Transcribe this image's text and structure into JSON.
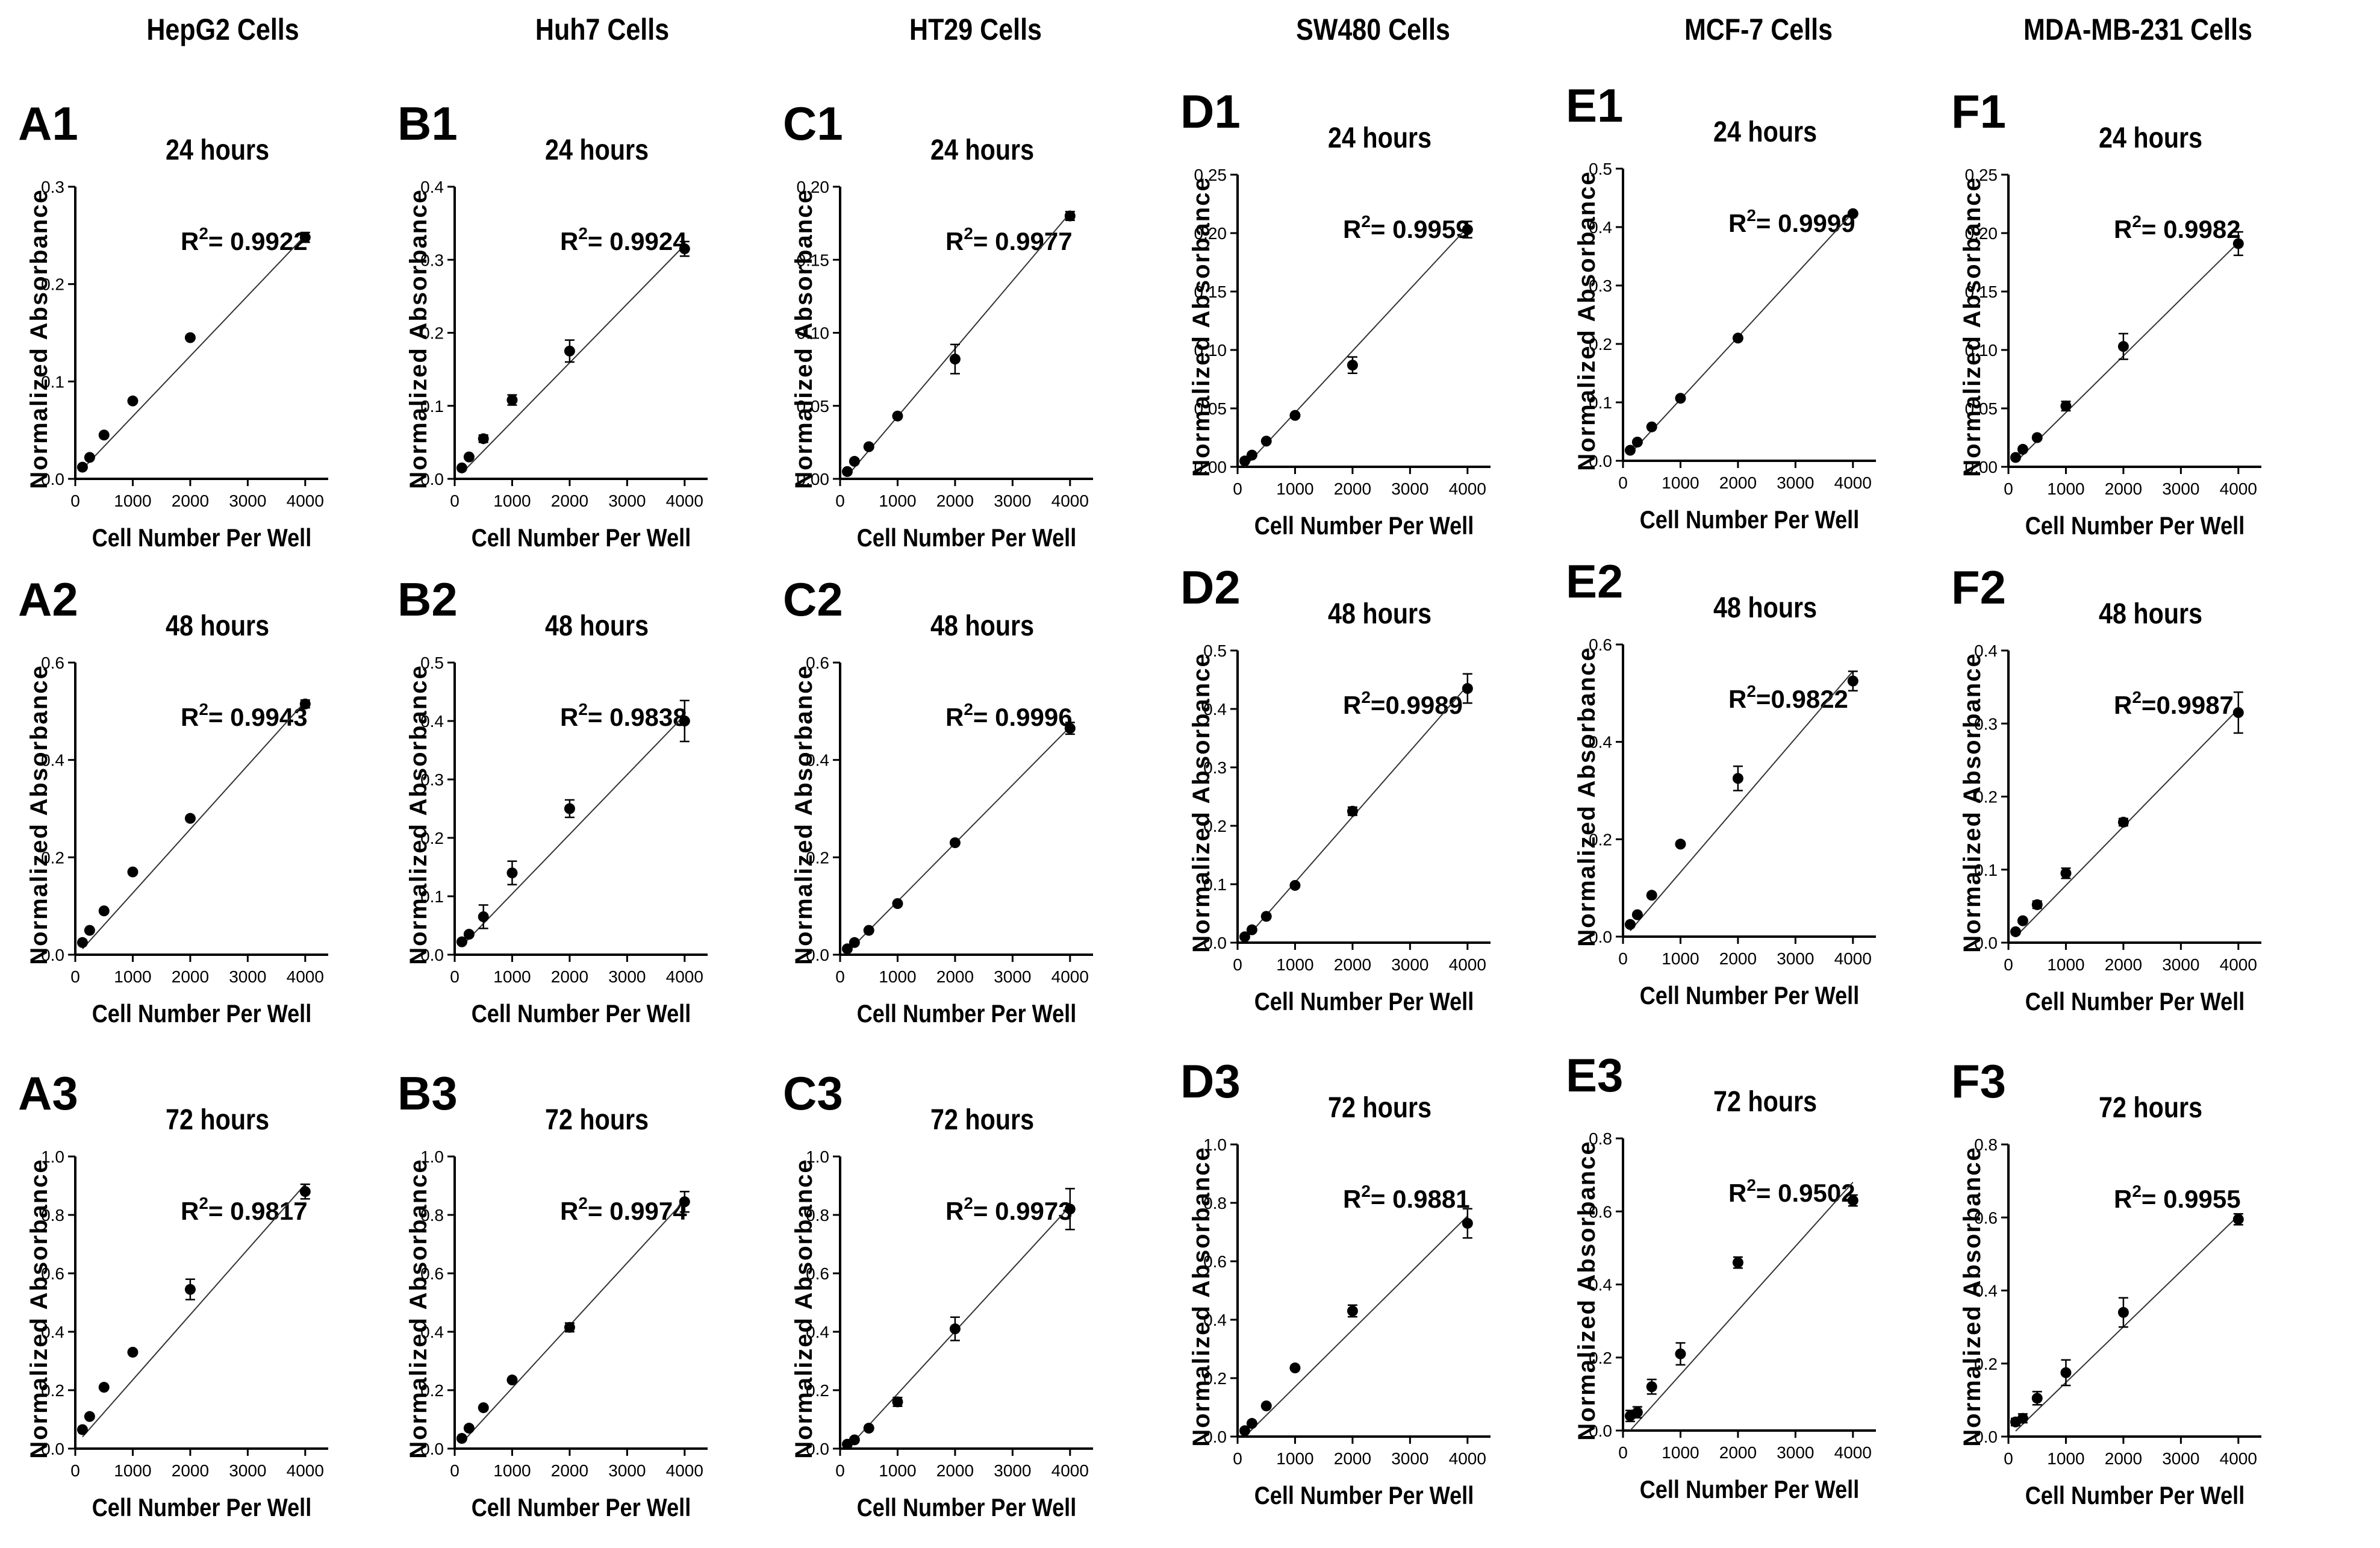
{
  "column_titles": [
    "HepG2 Cells",
    "Huh7 Cells",
    "HT29 Cells",
    "SW480 Cells",
    "MCF-7 Cells",
    "MDA-MB-231 Cells"
  ],
  "chart_data": [
    {
      "id": "A1",
      "type": "scatter",
      "time": "24 hours",
      "r2_label": "= 0.9922",
      "xlabel": "Cell Number Per Well",
      "ylabel": "Normalized Absorbance",
      "xlim": [
        0,
        4400
      ],
      "xticks": [
        "0",
        "1000",
        "2000",
        "3000",
        "4000"
      ],
      "ylim": [
        0,
        0.3
      ],
      "yticks": [
        "0.0",
        "0.1",
        "0.2",
        "0.3"
      ],
      "x": [
        125,
        250,
        500,
        1000,
        2000,
        4000
      ],
      "y": [
        0.012,
        0.022,
        0.045,
        0.08,
        0.145,
        0.248
      ],
      "err": [
        0.003,
        0.003,
        0.003,
        0.003,
        0.003,
        0.005
      ],
      "fit": [
        [
          125,
          0.01
        ],
        [
          4000,
          0.25
        ]
      ]
    },
    {
      "id": "A2",
      "type": "scatter",
      "time": "48 hours",
      "r2_label": "= 0.9943",
      "xlabel": "Cell Number Per Well",
      "ylabel": "Normalized Absorbance",
      "xlim": [
        0,
        4400
      ],
      "xticks": [
        "0",
        "1000",
        "2000",
        "3000",
        "4000"
      ],
      "ylim": [
        0,
        0.6
      ],
      "yticks": [
        "0.0",
        "0.2",
        "0.4",
        "0.6"
      ],
      "x": [
        125,
        250,
        500,
        1000,
        2000,
        4000
      ],
      "y": [
        0.025,
        0.05,
        0.09,
        0.17,
        0.28,
        0.515
      ],
      "err": [
        0.004,
        0.004,
        0.005,
        0.005,
        0.006,
        0.008
      ],
      "fit": [
        [
          125,
          0.012
        ],
        [
          4000,
          0.52
        ]
      ]
    },
    {
      "id": "A3",
      "type": "scatter",
      "time": "72 hours",
      "r2_label": "= 0.9817",
      "xlabel": "Cell Number Per Well",
      "ylabel": "Normalized Absorbance",
      "xlim": [
        0,
        4400
      ],
      "xticks": [
        "0",
        "1000",
        "2000",
        "3000",
        "4000"
      ],
      "ylim": [
        0,
        1.0
      ],
      "yticks": [
        "0.0",
        "0.2",
        "0.4",
        "0.6",
        "0.8",
        "1.0"
      ],
      "x": [
        125,
        250,
        500,
        1000,
        2000,
        4000
      ],
      "y": [
        0.065,
        0.11,
        0.21,
        0.33,
        0.545,
        0.88
      ],
      "err": [
        0.01,
        0.012,
        0.01,
        0.012,
        0.035,
        0.025
      ],
      "fit": [
        [
          125,
          0.04
        ],
        [
          4000,
          0.905
        ]
      ]
    },
    {
      "id": "B1",
      "type": "scatter",
      "time": "24 hours",
      "r2_label": "= 0.9924",
      "xlabel": "Cell Number Per Well",
      "ylabel": "Normalized Absorbance",
      "xlim": [
        0,
        4400
      ],
      "xticks": [
        "0",
        "1000",
        "2000",
        "3000",
        "4000"
      ],
      "ylim": [
        0,
        0.4
      ],
      "yticks": [
        "0.0",
        "0.1",
        "0.2",
        "0.3",
        "0.4"
      ],
      "x": [
        125,
        250,
        500,
        1000,
        2000,
        4000
      ],
      "y": [
        0.015,
        0.03,
        0.055,
        0.108,
        0.175,
        0.315
      ],
      "err": [
        0.004,
        0.004,
        0.005,
        0.007,
        0.015,
        0.01
      ],
      "fit": [
        [
          125,
          0.008
        ],
        [
          4000,
          0.32
        ]
      ]
    },
    {
      "id": "B2",
      "type": "scatter",
      "time": "48 hours",
      "r2_label": "= 0.9838",
      "xlabel": "Cell Number Per Well",
      "ylabel": "Normalized Absorbance",
      "xlim": [
        0,
        4400
      ],
      "xticks": [
        "0",
        "1000",
        "2000",
        "3000",
        "4000"
      ],
      "ylim": [
        0,
        0.5
      ],
      "yticks": [
        "0.0",
        "0.1",
        "0.2",
        "0.3",
        "0.4",
        "0.5"
      ],
      "x": [
        125,
        250,
        500,
        1000,
        2000,
        4000
      ],
      "y": [
        0.022,
        0.035,
        0.065,
        0.14,
        0.25,
        0.4
      ],
      "err": [
        0.005,
        0.006,
        0.02,
        0.02,
        0.015,
        0.035
      ],
      "fit": [
        [
          125,
          0.015
        ],
        [
          4000,
          0.41
        ]
      ]
    },
    {
      "id": "B3",
      "type": "scatter",
      "time": "72 hours",
      "r2_label": "= 0.9974",
      "xlabel": "Cell Number Per Well",
      "ylabel": "Normalized Absorbance",
      "xlim": [
        0,
        4400
      ],
      "xticks": [
        "0",
        "1000",
        "2000",
        "3000",
        "4000"
      ],
      "ylim": [
        0,
        1.0
      ],
      "yticks": [
        "0.0",
        "0.2",
        "0.4",
        "0.6",
        "0.8",
        "1.0"
      ],
      "x": [
        125,
        250,
        500,
        1000,
        2000,
        4000
      ],
      "y": [
        0.035,
        0.07,
        0.14,
        0.235,
        0.415,
        0.845
      ],
      "err": [
        0.01,
        0.01,
        0.01,
        0.012,
        0.015,
        0.035
      ],
      "fit": [
        [
          125,
          0.02
        ],
        [
          4000,
          0.85
        ]
      ]
    },
    {
      "id": "C1",
      "type": "scatter",
      "time": "24 hours",
      "r2_label": "= 0.9977",
      "xlabel": "Cell Number Per Well",
      "ylabel": "Normalized Absorbance",
      "xlim": [
        0,
        4400
      ],
      "xticks": [
        "0",
        "1000",
        "2000",
        "3000",
        "4000"
      ],
      "ylim": [
        0,
        0.2
      ],
      "yticks": [
        "0.00",
        "0.05",
        "0.10",
        "0.15",
        "0.20"
      ],
      "x": [
        125,
        250,
        500,
        1000,
        2000,
        4000
      ],
      "y": [
        0.005,
        0.012,
        0.022,
        0.043,
        0.082,
        0.18
      ],
      "err": [
        0.001,
        0.002,
        0.002,
        0.002,
        0.01,
        0.003
      ],
      "fit": [
        [
          125,
          0.002
        ],
        [
          4000,
          0.182
        ]
      ]
    },
    {
      "id": "C2",
      "type": "scatter",
      "time": "48 hours",
      "r2_label": "= 0.9996",
      "xlabel": "Cell Number Per Well",
      "ylabel": "Normalized Absorbance",
      "xlim": [
        0,
        4400
      ],
      "xticks": [
        "0",
        "1000",
        "2000",
        "3000",
        "4000"
      ],
      "ylim": [
        0,
        0.6
      ],
      "yticks": [
        "0.0",
        "0.2",
        "0.4",
        "0.6"
      ],
      "x": [
        125,
        250,
        500,
        1000,
        2000,
        4000
      ],
      "y": [
        0.012,
        0.025,
        0.05,
        0.105,
        0.23,
        0.465
      ],
      "err": [
        0.003,
        0.003,
        0.004,
        0.004,
        0.005,
        0.012
      ],
      "fit": [
        [
          125,
          0.005
        ],
        [
          4000,
          0.468
        ]
      ]
    },
    {
      "id": "C3",
      "type": "scatter",
      "time": "72  hours",
      "r2_label": "= 0.9973",
      "xlabel": "Cell Number Per Well",
      "ylabel": "Normalized Absorbance",
      "xlim": [
        0,
        4400
      ],
      "xticks": [
        "0",
        "1000",
        "2000",
        "3000",
        "4000"
      ],
      "ylim": [
        0,
        1.0
      ],
      "yticks": [
        "0.0",
        "0.2",
        "0.4",
        "0.6",
        "0.8",
        "1.0"
      ],
      "x": [
        125,
        250,
        500,
        1000,
        2000,
        4000
      ],
      "y": [
        0.015,
        0.03,
        0.07,
        0.16,
        0.41,
        0.82
      ],
      "err": [
        0.005,
        0.006,
        0.01,
        0.015,
        0.04,
        0.07
      ],
      "fit": [
        [
          125,
          0.0
        ],
        [
          4000,
          0.83
        ]
      ]
    },
    {
      "id": "D1",
      "type": "scatter",
      "time": "24 hours",
      "r2_label": "= 0.9959",
      "xlabel": "Cell Number Per Well",
      "ylabel": "Normalized Absorbance",
      "xlim": [
        0,
        4400
      ],
      "xticks": [
        "0",
        "1000",
        "2000",
        "3000",
        "4000"
      ],
      "ylim": [
        0,
        0.25
      ],
      "yticks": [
        "0.00",
        "0.05",
        "0.10",
        "0.15",
        "0.20",
        "0.25"
      ],
      "x": [
        125,
        250,
        500,
        1000,
        2000,
        4000
      ],
      "y": [
        0.005,
        0.01,
        0.022,
        0.044,
        0.087,
        0.203
      ],
      "err": [
        0.001,
        0.002,
        0.002,
        0.003,
        0.007,
        0.007
      ],
      "fit": [
        [
          125,
          0.0
        ],
        [
          4000,
          0.205
        ]
      ]
    },
    {
      "id": "D2",
      "type": "scatter",
      "time": "48 hours",
      "r2_label": "=0.9989",
      "xlabel": "Cell Number Per Well",
      "ylabel": "Normalized Absorbance",
      "xlim": [
        0,
        4400
      ],
      "xticks": [
        "0",
        "1000",
        "2000",
        "3000",
        "4000"
      ],
      "ylim": [
        0,
        0.5
      ],
      "yticks": [
        "0.0",
        "0.1",
        "0.2",
        "0.3",
        "0.4",
        "0.5"
      ],
      "x": [
        125,
        250,
        500,
        1000,
        2000,
        4000
      ],
      "y": [
        0.01,
        0.022,
        0.045,
        0.098,
        0.225,
        0.435
      ],
      "err": [
        0.003,
        0.003,
        0.003,
        0.005,
        0.007,
        0.025
      ],
      "fit": [
        [
          125,
          0.005
        ],
        [
          4000,
          0.44
        ]
      ]
    },
    {
      "id": "D3",
      "type": "scatter",
      "time": "72 hours",
      "r2_label": "= 0.9881",
      "xlabel": "Cell Number Per Well",
      "ylabel": "Normalized Absorbance",
      "xlim": [
        0,
        4400
      ],
      "xticks": [
        "0",
        "1000",
        "2000",
        "3000",
        "4000"
      ],
      "ylim": [
        0,
        1.0
      ],
      "yticks": [
        "0.0",
        "0.2",
        "0.4",
        "0.6",
        "0.8",
        "1.0"
      ],
      "x": [
        125,
        250,
        500,
        1000,
        2000,
        4000
      ],
      "y": [
        0.02,
        0.045,
        0.105,
        0.235,
        0.43,
        0.73
      ],
      "err": [
        0.006,
        0.008,
        0.01,
        0.012,
        0.02,
        0.05
      ],
      "fit": [
        [
          125,
          0.0
        ],
        [
          4000,
          0.755
        ]
      ]
    },
    {
      "id": "E1",
      "type": "scatter",
      "time": "24 hours",
      "r2_label": "= 0.9999",
      "xlabel": "Cell Number Per Well",
      "ylabel": "Normalized Absorbance",
      "xlim": [
        0,
        4400
      ],
      "xticks": [
        "0",
        "1000",
        "2000",
        "3000",
        "4000"
      ],
      "ylim": [
        0,
        0.5
      ],
      "yticks": [
        "0.0",
        "0.1",
        "0.2",
        "0.3",
        "0.4",
        "0.5"
      ],
      "x": [
        125,
        250,
        500,
        1000,
        2000,
        4000
      ],
      "y": [
        0.018,
        0.032,
        0.058,
        0.107,
        0.21,
        0.423
      ],
      "err": [
        0.003,
        0.003,
        0.004,
        0.006,
        0.005,
        0.005
      ],
      "fit": [
        [
          125,
          0.012
        ],
        [
          4000,
          0.425
        ]
      ]
    },
    {
      "id": "E2",
      "type": "scatter",
      "time": "48 hours",
      "r2_label": "=0.9822",
      "xlabel": "Cell Number Per Well",
      "ylabel": "Normalized Absorbance",
      "xlim": [
        0,
        4400
      ],
      "xticks": [
        "0",
        "1000",
        "2000",
        "3000",
        "4000"
      ],
      "ylim": [
        0,
        0.6
      ],
      "yticks": [
        "0.0",
        "0.2",
        "0.4",
        "0.6"
      ],
      "x": [
        125,
        250,
        500,
        1000,
        2000,
        4000
      ],
      "y": [
        0.025,
        0.045,
        0.085,
        0.19,
        0.325,
        0.525
      ],
      "err": [
        0.004,
        0.006,
        0.006,
        0.007,
        0.025,
        0.02
      ],
      "fit": [
        [
          125,
          0.012
        ],
        [
          4000,
          0.545
        ]
      ]
    },
    {
      "id": "E3",
      "type": "scatter",
      "time": "72 hours",
      "r2_label": "= 0.9502",
      "xlabel": "Cell Number Per Well",
      "ylabel": "Normalized Absorbance",
      "xlim": [
        0,
        4400
      ],
      "xticks": [
        "0",
        "1000",
        "2000",
        "3000",
        "4000"
      ],
      "ylim": [
        0,
        0.8
      ],
      "yticks": [
        "0.0",
        "0.2",
        "0.4",
        "0.6",
        "0.8"
      ],
      "x": [
        125,
        250,
        500,
        1000,
        2000,
        4000
      ],
      "y": [
        0.04,
        0.05,
        0.12,
        0.21,
        0.46,
        0.63
      ],
      "err": [
        0.015,
        0.015,
        0.02,
        0.03,
        0.015,
        0.015
      ],
      "fit": [
        [
          125,
          0.0
        ],
        [
          4000,
          0.68
        ]
      ]
    },
    {
      "id": "F1",
      "type": "scatter",
      "time": "24 hours",
      "r2_label": "= 0.9982",
      "xlabel": "Cell Number Per Well",
      "ylabel": "Normalized Absorbance",
      "xlim": [
        0,
        4400
      ],
      "xticks": [
        "0",
        "1000",
        "2000",
        "3000",
        "4000"
      ],
      "ylim": [
        0,
        0.25
      ],
      "yticks": [
        "0.00",
        "0.05",
        "0.10",
        "0.15",
        "0.20",
        "0.25"
      ],
      "x": [
        125,
        250,
        500,
        1000,
        2000,
        4000
      ],
      "y": [
        0.008,
        0.015,
        0.025,
        0.052,
        0.103,
        0.191
      ],
      "err": [
        0.002,
        0.003,
        0.003,
        0.004,
        0.011,
        0.01
      ],
      "fit": [
        [
          125,
          0.004
        ],
        [
          4000,
          0.192
        ]
      ]
    },
    {
      "id": "F2",
      "type": "scatter",
      "time": "48 hours",
      "r2_label": "=0.9987",
      "xlabel": "Cell Number Per Well",
      "ylabel": "Normalized Absorbance",
      "xlim": [
        0,
        4400
      ],
      "xticks": [
        "0",
        "1000",
        "2000",
        "3000",
        "4000"
      ],
      "ylim": [
        0,
        0.4
      ],
      "yticks": [
        "0.0",
        "0.1",
        "0.2",
        "0.3",
        "0.4"
      ],
      "x": [
        125,
        250,
        500,
        1000,
        2000,
        4000
      ],
      "y": [
        0.015,
        0.03,
        0.052,
        0.095,
        0.165,
        0.315
      ],
      "err": [
        0.003,
        0.004,
        0.005,
        0.007,
        0.005,
        0.028
      ],
      "fit": [
        [
          125,
          0.008
        ],
        [
          4000,
          0.32
        ]
      ]
    },
    {
      "id": "F3",
      "type": "scatter",
      "time": "72 hours",
      "r2_label": "= 0.9955",
      "xlabel": "Cell Number Per Well",
      "ylabel": "Normalized Absorbance",
      "xlim": [
        0,
        4400
      ],
      "xticks": [
        "0",
        "1000",
        "2000",
        "3000",
        "4000"
      ],
      "ylim": [
        0,
        0.8
      ],
      "yticks": [
        "0.0",
        "0.2",
        "0.4",
        "0.6",
        "0.8"
      ],
      "x": [
        125,
        250,
        500,
        1000,
        2000,
        4000
      ],
      "y": [
        0.04,
        0.05,
        0.105,
        0.175,
        0.34,
        0.595
      ],
      "err": [
        0.01,
        0.012,
        0.018,
        0.035,
        0.04,
        0.015
      ],
      "fit": [
        [
          125,
          0.015
        ],
        [
          4000,
          0.605
        ]
      ]
    }
  ]
}
